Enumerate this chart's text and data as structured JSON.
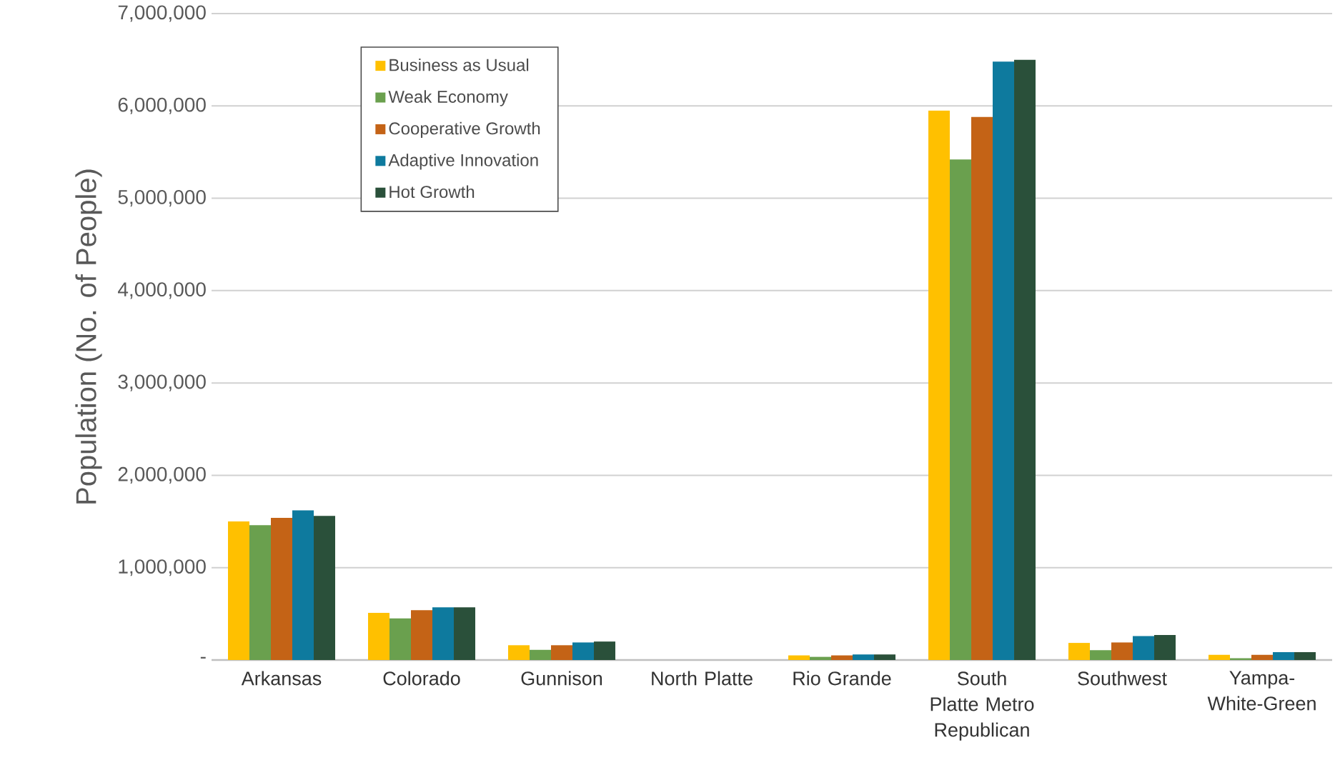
{
  "chart_data": {
    "type": "bar",
    "ylabel": "Population (No. of People)",
    "categories": [
      "Arkansas",
      "Colorado",
      "Gunnison",
      "North Platte",
      "Rio Grande",
      "South Platte Metro Republican",
      "Southwest",
      "Yampa-White-Green"
    ],
    "series": [
      {
        "name": "Business as Usual",
        "color": "#ffc000",
        "values": [
          1500000,
          510000,
          160000,
          0,
          50000,
          5950000,
          185000,
          56000
        ]
      },
      {
        "name": "Weak Economy",
        "color": "#6aa04e",
        "values": [
          1460000,
          450000,
          110000,
          0,
          34000,
          5420000,
          107000,
          20000
        ]
      },
      {
        "name": "Cooperative Growth",
        "color": "#c46316",
        "values": [
          1540000,
          540000,
          160000,
          0,
          50000,
          5880000,
          190000,
          56000
        ]
      },
      {
        "name": "Adaptive Innovation",
        "color": "#0e7a9e",
        "values": [
          1620000,
          570000,
          190000,
          0,
          60000,
          6480000,
          260000,
          86000
        ]
      },
      {
        "name": "Hot Growth",
        "color": "#2a503a",
        "values": [
          1560000,
          570000,
          200000,
          0,
          60000,
          6500000,
          270000,
          86000
        ]
      }
    ],
    "ylim": [
      0,
      7000000
    ],
    "yticks": [
      {
        "value": 0,
        "label": "-"
      },
      {
        "value": 1000000,
        "label": "1,000,000"
      },
      {
        "value": 2000000,
        "label": "2,000,000"
      },
      {
        "value": 3000000,
        "label": "3,000,000"
      },
      {
        "value": 4000000,
        "label": "4,000,000"
      },
      {
        "value": 5000000,
        "label": "5,000,000"
      },
      {
        "value": 6000000,
        "label": "6,000,000"
      },
      {
        "value": 7000000,
        "label": "7,000,000"
      }
    ],
    "grid": "y",
    "legend": "top left"
  }
}
